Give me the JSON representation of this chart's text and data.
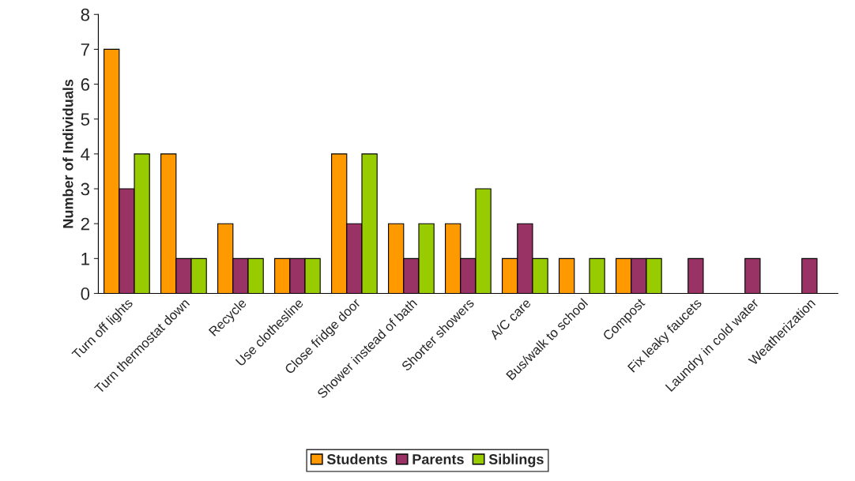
{
  "chart_data": {
    "type": "bar",
    "ylabel": "Number of Individuals",
    "categories": [
      "Turn off lights",
      "Turn thermostat down",
      "Recycle",
      "Use clothesline",
      "Close fridge door",
      "Shower instead of bath",
      "Shorter showers",
      "A/C care",
      "Bus/walk to school",
      "Compost",
      "Fix leaky faucets",
      "Laundry in cold water",
      "Weatherization"
    ],
    "series": [
      {
        "name": "Students",
        "color": "#ff9900",
        "values": [
          7,
          4,
          2,
          1,
          4,
          2,
          2,
          1,
          1,
          1,
          0,
          0,
          0
        ]
      },
      {
        "name": "Parents",
        "color": "#993366",
        "values": [
          3,
          1,
          1,
          1,
          2,
          1,
          1,
          2,
          0,
          1,
          1,
          1,
          1
        ]
      },
      {
        "name": "Siblings",
        "color": "#99cc00",
        "values": [
          4,
          1,
          1,
          1,
          4,
          2,
          3,
          1,
          1,
          1,
          0,
          0,
          0
        ]
      }
    ],
    "ylim": [
      0,
      8
    ],
    "yticks": [
      0,
      1,
      2,
      3,
      4,
      5,
      6,
      7,
      8
    ],
    "grid": false,
    "legend": "bottom"
  }
}
